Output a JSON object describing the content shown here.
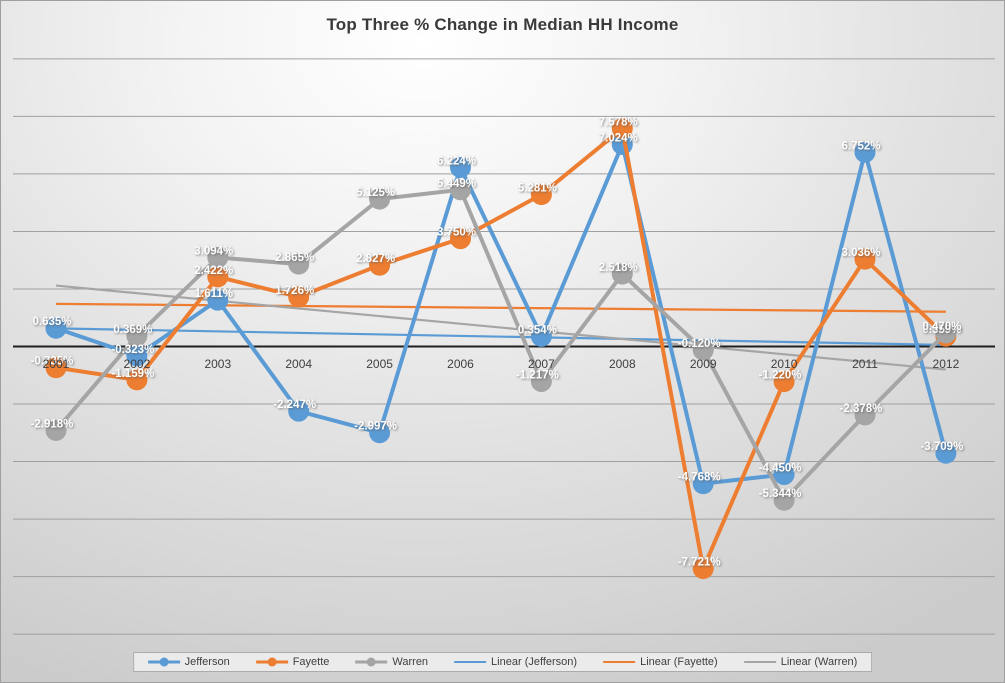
{
  "title": "Top Three % Change in Median HH Income",
  "colors": {
    "jefferson": "#5B9BD5",
    "fayette": "#ED7D31",
    "warren": "#A5A5A5",
    "axis_line": "#1f1f1f",
    "gridline": "#a0a0a0",
    "data_label_text": "#ffffff",
    "tick_text": "#3f3f3f",
    "legend_text": "#3f3f3f"
  },
  "chart_data": {
    "type": "line",
    "title": "Top Three % Change in Median HH Income",
    "categories": [
      "2001",
      "2002",
      "2003",
      "2004",
      "2005",
      "2006",
      "2007",
      "2008",
      "2009",
      "2010",
      "2011",
      "2012"
    ],
    "series": [
      {
        "name": "Jefferson",
        "color": "#5B9BD5",
        "values": [
          0.635,
          -0.323,
          1.611,
          -2.247,
          -2.997,
          6.224,
          0.354,
          7.024,
          -4.768,
          -4.45,
          6.752,
          -3.709
        ]
      },
      {
        "name": "Fayette",
        "color": "#ED7D31",
        "values": [
          -0.735,
          -1.159,
          2.422,
          1.726,
          2.827,
          3.75,
          5.281,
          7.578,
          -7.721,
          -1.22,
          3.036,
          0.359
        ]
      },
      {
        "name": "Warren",
        "color": "#A5A5A5",
        "values": [
          -2.918,
          0.369,
          3.094,
          2.865,
          5.125,
          5.449,
          -1.217,
          2.518,
          -0.12,
          -5.344,
          -2.378,
          0.47
        ]
      }
    ],
    "trendlines": [
      {
        "name": "Linear (Jefferson)",
        "color": "#5B9BD5",
        "start": 0.63,
        "end": 0.055
      },
      {
        "name": "Linear (Fayette)",
        "color": "#ED7D31",
        "start": 1.483,
        "end": 1.207
      },
      {
        "name": "Linear (Warren)",
        "color": "#A5A5A5",
        "start": 2.119,
        "end": -0.801
      }
    ],
    "ylim": [
      -10,
      10
    ],
    "grid_interval": 2,
    "grid": "on",
    "legend_position": "bottom",
    "data_label_format": "0.000%"
  }
}
